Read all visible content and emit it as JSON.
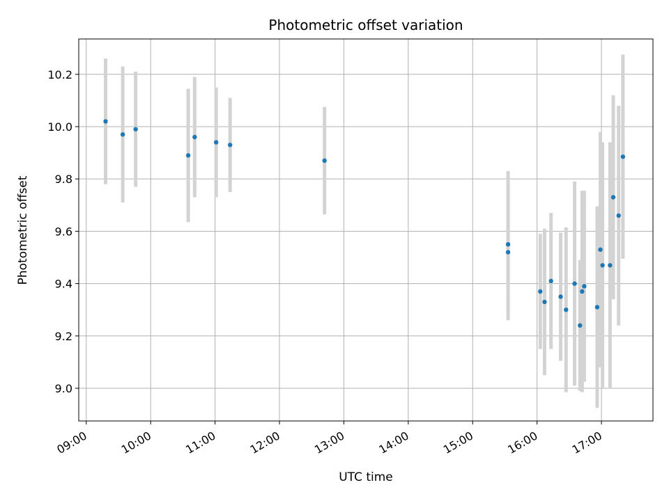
{
  "chart_data": {
    "type": "scatter",
    "title": "Photometric offset variation",
    "xlabel": "UTC time",
    "ylabel": "Photometric offset",
    "x_ticks": [
      "09:00",
      "10:00",
      "11:00",
      "12:00",
      "13:00",
      "14:00",
      "15:00",
      "16:00",
      "17:00"
    ],
    "y_ticks": [
      "9.0",
      "9.2",
      "9.4",
      "9.6",
      "9.8",
      "10.0",
      "10.2"
    ],
    "xlim": [
      "08:53",
      "17:48"
    ],
    "ylim": [
      8.875,
      10.335
    ],
    "grid": true,
    "colors": {
      "point": "#1f77b4",
      "errorbar": "#d3d3d3",
      "grid": "#b0b0b0"
    },
    "points": [
      {
        "x": "09:18",
        "y": 10.02,
        "err": 0.24
      },
      {
        "x": "09:34",
        "y": 9.97,
        "err": 0.26
      },
      {
        "x": "09:46",
        "y": 9.99,
        "err": 0.22
      },
      {
        "x": "10:35",
        "y": 9.89,
        "err": 0.255
      },
      {
        "x": "10:41",
        "y": 9.96,
        "err": 0.23
      },
      {
        "x": "11:01",
        "y": 9.94,
        "err": 0.21
      },
      {
        "x": "11:14",
        "y": 9.93,
        "err": 0.18
      },
      {
        "x": "12:42",
        "y": 9.87,
        "err": 0.205
      },
      {
        "x": "15:33",
        "y": 9.55,
        "err": 0.28
      },
      {
        "x": "15:33",
        "y": 9.52,
        "err": 0.26
      },
      {
        "x": "16:03",
        "y": 9.37,
        "err": 0.22
      },
      {
        "x": "16:07",
        "y": 9.33,
        "err": 0.28
      },
      {
        "x": "16:13",
        "y": 9.41,
        "err": 0.26
      },
      {
        "x": "16:22",
        "y": 9.35,
        "err": 0.245
      },
      {
        "x": "16:27",
        "y": 9.3,
        "err": 0.315
      },
      {
        "x": "16:35",
        "y": 9.4,
        "err": 0.39
      },
      {
        "x": "16:40",
        "y": 9.24,
        "err": 0.25
      },
      {
        "x": "16:42",
        "y": 9.37,
        "err": 0.385
      },
      {
        "x": "16:44",
        "y": 9.39,
        "err": 0.365
      },
      {
        "x": "16:56",
        "y": 9.31,
        "err": 0.385
      },
      {
        "x": "16:59",
        "y": 9.53,
        "err": 0.45
      },
      {
        "x": "17:01",
        "y": 9.47,
        "err": 0.47
      },
      {
        "x": "17:08",
        "y": 9.47,
        "err": 0.47
      },
      {
        "x": "17:11",
        "y": 9.73,
        "err": 0.39
      },
      {
        "x": "17:16",
        "y": 9.66,
        "err": 0.42
      },
      {
        "x": "17:20",
        "y": 9.885,
        "err": 0.39
      }
    ]
  }
}
